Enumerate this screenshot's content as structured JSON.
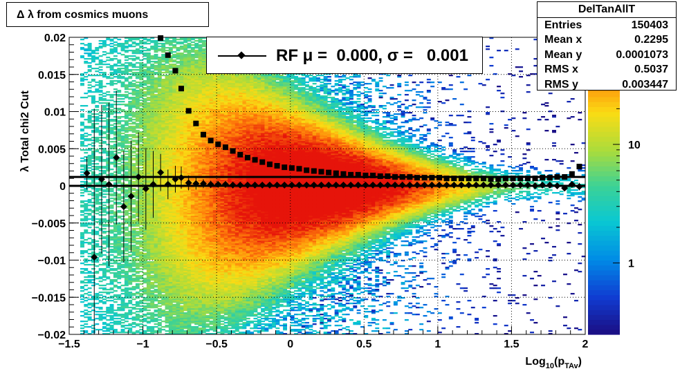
{
  "title": "Δ λ from cosmics muons",
  "stats": {
    "name": "DelTanAllT",
    "rows": [
      {
        "label": "Entries",
        "value": "150403"
      },
      {
        "label": "Mean x",
        "value": "0.2295"
      },
      {
        "label": "Mean y",
        "value": "0.0001073"
      },
      {
        "label": "RMS x",
        "value": "0.5037"
      },
      {
        "label": "RMS y",
        "value": "0.003447"
      }
    ]
  },
  "fit_legend": "RF μ =  0.000, σ =   0.001",
  "chart_data": {
    "type": "heatmap",
    "xlabel": "Log10(pTAv)",
    "xlabel_main": "Log",
    "xlabel_sub": "10",
    "xlabel_mid": "(p",
    "xlabel_sub2": "TAv",
    "xlabel_end": ")",
    "ylabel": "λ  Total chi2 Cut",
    "xlim": [
      -1.5,
      2
    ],
    "ylim": [
      -0.02,
      0.02
    ],
    "x_ticks": [
      -1.5,
      -1,
      -0.5,
      0,
      0.5,
      1,
      1.5,
      2
    ],
    "x_tick_labels": [
      "−1.5",
      "−1",
      "−0.5",
      "0",
      "0.5",
      "1",
      "1.5",
      "2"
    ],
    "y_ticks": [
      -0.02,
      -0.015,
      -0.01,
      -0.005,
      0,
      0.005,
      0.01,
      0.015,
      0.02
    ],
    "y_tick_labels": [
      "−0.02",
      "−0.015",
      "−0.01",
      "−0.005",
      "0",
      "0.005",
      "0.01",
      "0.015",
      "0.02"
    ],
    "grid": true,
    "colorbar": {
      "scale": "log",
      "tick_values": [
        1,
        10
      ],
      "tick_labels": [
        "1",
        "10"
      ],
      "max": 80
    },
    "rms_profile": {
      "name": "RMS (squares)",
      "x": [
        -0.88,
        -0.83,
        -0.78,
        -0.74,
        -0.69,
        -0.64,
        -0.59,
        -0.54,
        -0.49,
        -0.44,
        -0.39,
        -0.34,
        -0.29,
        -0.24,
        -0.19,
        -0.14,
        -0.09,
        -0.04,
        0.01,
        0.06,
        0.11,
        0.16,
        0.21,
        0.26,
        0.31,
        0.36,
        0.41,
        0.46,
        0.51,
        0.56,
        0.61,
        0.66,
        0.71,
        0.76,
        0.81,
        0.86,
        0.91,
        0.96,
        1.01,
        1.06,
        1.11,
        1.16,
        1.21,
        1.26,
        1.31,
        1.36,
        1.41,
        1.46,
        1.51,
        1.56,
        1.61,
        1.66,
        1.71,
        1.76,
        1.81,
        1.86,
        1.91,
        1.96
      ],
      "y": [
        0.0199,
        0.0176,
        0.0155,
        0.0131,
        0.0101,
        0.0084,
        0.0069,
        0.0061,
        0.0056,
        0.0052,
        0.0047,
        0.0042,
        0.0038,
        0.0035,
        0.0032,
        0.0029,
        0.0027,
        0.0025,
        0.0024,
        0.0023,
        0.0021,
        0.002,
        0.0019,
        0.0018,
        0.0017,
        0.0016,
        0.0015,
        0.0015,
        0.0014,
        0.0014,
        0.0013,
        0.0013,
        0.0012,
        0.0012,
        0.0012,
        0.0011,
        0.0011,
        0.0011,
        0.0011,
        0.001,
        0.001,
        0.001,
        0.001,
        0.001,
        0.001,
        0.0009,
        0.0009,
        0.001,
        0.001,
        0.001,
        0.001,
        0.001,
        0.0011,
        0.0011,
        0.0012,
        0.0012,
        0.0016,
        0.0026
      ]
    },
    "mean_profile": {
      "name": "RF mean (diamonds)",
      "x": [
        -1.38,
        -1.33,
        -1.28,
        -1.23,
        -1.18,
        -1.13,
        -1.08,
        -1.03,
        -0.98,
        -0.93,
        -0.88,
        -0.83,
        -0.78,
        -0.74,
        -0.69,
        -0.64,
        -0.59,
        -0.54,
        -0.49,
        -0.44,
        -0.39,
        -0.34,
        -0.29,
        -0.24,
        -0.19,
        -0.14,
        -0.09,
        -0.04,
        0.01,
        0.06,
        0.11,
        0.16,
        0.21,
        0.26,
        0.31,
        0.36,
        0.41,
        0.46,
        0.51,
        0.56,
        0.61,
        0.66,
        0.71,
        0.76,
        0.81,
        0.86,
        0.91,
        0.96,
        1.01,
        1.06,
        1.11,
        1.16,
        1.21,
        1.26,
        1.31,
        1.36,
        1.41,
        1.46,
        1.51,
        1.56,
        1.61,
        1.66,
        1.71,
        1.76,
        1.81,
        1.86,
        1.91,
        1.96
      ],
      "y": [
        0.0017,
        -0.0096,
        0.0009,
        0.0002,
        0.0038,
        -0.0028,
        -0.0014,
        0.0012,
        -0.0004,
        0.0002,
        0.0018,
        0.0002,
        0.0009,
        0.0011,
        0.0004,
        0.0003,
        0.0003,
        0.0002,
        0.0002,
        0.0002,
        0.0001,
        0.0001,
        0.0001,
        0.0001,
        0.0001,
        0.0001,
        0.0001,
        0.0001,
        0.0001,
        0.0001,
        0.0001,
        0.0001,
        0.0001,
        0.0001,
        0.0001,
        0.0001,
        0.0001,
        0.0001,
        0.0001,
        0.0001,
        0.0001,
        0.0001,
        0.0001,
        0.0001,
        0.0001,
        0.0001,
        0.0001,
        0.0001,
        0.0001,
        0.0001,
        0.0001,
        0.0001,
        0.0001,
        0.0001,
        0.0001,
        0.0001,
        0.0001,
        0.0001,
        0.0001,
        0.0001,
        0.0001,
        0.0,
        0.0001,
        0.0001,
        0.0,
        -0.0003,
        0.0002,
        -0.0001
      ],
      "err": [
        0.0022,
        0.02,
        0.01,
        0.011,
        0.009,
        0.0075,
        0.0075,
        0.006,
        0.0055,
        0.0045,
        0.0025,
        0.002,
        0.0018,
        0.0015,
        0.001,
        0.0008,
        0.0006,
        0.0005,
        0.0004,
        0.0003,
        0.0003,
        0.0002,
        0.0002,
        0.0002,
        0.0002,
        0.0002,
        0.0001,
        0.0001,
        0.0001,
        0.0001,
        0.0001,
        0.0001,
        0.0001,
        0.0001,
        0.0001,
        0.0001,
        0.0001,
        0.0001,
        0.0001,
        0.0001,
        0.0001,
        0.0001,
        0.0001,
        0.0001,
        0.0001,
        0.0001,
        0.0001,
        0.0001,
        0.0001,
        0.0001,
        0.0001,
        0.0001,
        0.0001,
        0.0001,
        0.0001,
        0.0001,
        0.0001,
        0.0001,
        0.0001,
        0.0001,
        0.0001,
        0.0001,
        0.0001,
        0.0001,
        0.0002,
        0.0003,
        0.0004,
        0.0005
      ]
    },
    "fit_lines": [
      0.0,
      0.0012
    ]
  }
}
